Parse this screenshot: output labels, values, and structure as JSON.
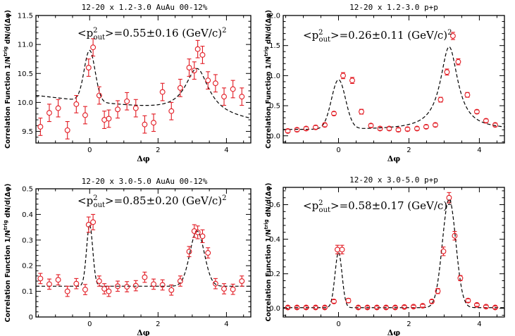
{
  "chart_data": [
    {
      "type": "scatter",
      "title": "12-20 x 1.2-3.0  AuAu 00-12%",
      "annotation": {
        "prefix": "<p",
        "sup": "2",
        "sub": "out",
        "value": ">=0.55±0.16 (GeV/c)",
        "sup2": "2"
      },
      "xlabel": "Δφ",
      "ylabel": "Correlation Function 1/N",
      "ylabel_sup": "trig",
      "ylabel_suffix": " dN/d(Δφ)",
      "xlim": [
        -1.5708,
        4.7124
      ],
      "ylim": [
        9.3,
        11.5
      ],
      "xticks": [
        0,
        2,
        4
      ],
      "yticks": [
        9.5,
        10.0,
        10.5,
        11.0,
        11.5
      ],
      "ytick_labels": [
        "9.5",
        "10.0",
        "10.5",
        "11.0",
        "11.5"
      ],
      "series": [
        {
          "name": "data",
          "x": [
            -1.44,
            -1.18,
            -0.92,
            -0.65,
            -0.39,
            -0.13,
            -0.03,
            0.1,
            0.28,
            0.43,
            0.56,
            0.82,
            1.09,
            1.35,
            1.61,
            1.87,
            2.13,
            2.39,
            2.65,
            2.91,
            3.06,
            3.16,
            3.3,
            3.46,
            3.68,
            3.93,
            4.19,
            4.45
          ],
          "y": [
            9.58,
            9.82,
            9.9,
            9.52,
            9.97,
            9.78,
            10.6,
            10.95,
            10.12,
            9.7,
            9.72,
            9.88,
            10.02,
            9.9,
            9.62,
            9.65,
            10.18,
            9.85,
            10.25,
            10.6,
            10.55,
            10.92,
            10.82,
            10.38,
            10.33,
            10.1,
            10.23,
            10.1
          ],
          "err": [
            0.15,
            0.15,
            0.15,
            0.15,
            0.15,
            0.15,
            0.15,
            0.15,
            0.15,
            0.15,
            0.15,
            0.15,
            0.15,
            0.15,
            0.15,
            0.15,
            0.15,
            0.15,
            0.15,
            0.15,
            0.15,
            0.15,
            0.15,
            0.15,
            0.15,
            0.15,
            0.15,
            0.15
          ]
        }
      ],
      "fit": {
        "base": 9.9,
        "drift": -0.07,
        "drift_center": 1.5,
        "near_amp": 0.88,
        "near_width": 0.16,
        "away_amp": 0.8,
        "away_width": 0.42,
        "away_shape": "lorentz"
      }
    },
    {
      "type": "scatter",
      "title": "12-20 x 1.2-3.0  p+p",
      "annotation": {
        "prefix": "<p",
        "sup": "2",
        "sub": "out",
        "value": ">=0.26±0.11 (GeV/c)",
        "sup2": "2"
      },
      "xlabel": "Δφ",
      "ylabel": "Correlation Function 1/N",
      "ylabel_sup": "trig",
      "ylabel_suffix": " dN/d(Δφ)",
      "xlim": [
        -1.5708,
        4.7124
      ],
      "ylim": [
        -0.12,
        2.0
      ],
      "xticks": [
        0,
        2,
        4
      ],
      "yticks": [
        0.0,
        0.5,
        1.0,
        1.5,
        2.0
      ],
      "ytick_labels": [
        "0.0",
        "0.5",
        "1.0",
        "1.5",
        "2.0"
      ],
      "series": [
        {
          "name": "data",
          "x": [
            -1.44,
            -1.18,
            -0.92,
            -0.65,
            -0.39,
            -0.13,
            0.13,
            0.39,
            0.65,
            0.92,
            1.18,
            1.44,
            1.7,
            1.96,
            2.23,
            2.49,
            2.75,
            2.9,
            3.08,
            3.25,
            3.4,
            3.66,
            3.93,
            4.19,
            4.45
          ],
          "y": [
            0.08,
            0.1,
            0.12,
            0.14,
            0.18,
            0.37,
            1.0,
            0.92,
            0.4,
            0.17,
            0.12,
            0.12,
            0.1,
            0.11,
            0.12,
            0.15,
            0.18,
            0.6,
            1.06,
            1.66,
            1.23,
            0.68,
            0.4,
            0.25,
            0.18
          ],
          "err": [
            0.03,
            0.03,
            0.03,
            0.03,
            0.03,
            0.03,
            0.05,
            0.05,
            0.04,
            0.03,
            0.03,
            0.03,
            0.03,
            0.03,
            0.03,
            0.03,
            0.03,
            0.04,
            0.05,
            0.06,
            0.05,
            0.04,
            0.03,
            0.03,
            0.03
          ]
        }
      ],
      "fit": {
        "base": 0.1,
        "drift": 0,
        "drift_center": 1.5,
        "near_amp": 0.82,
        "near_width": 0.2,
        "away_amp": 1.38,
        "away_width": 0.3,
        "away_shape": "lorentz"
      }
    },
    {
      "type": "scatter",
      "title": "12-20 x 3.0-5.0  AuAu 00-12%",
      "annotation": {
        "prefix": "<p",
        "sup": "2",
        "sub": "out",
        "value": ">=0.85±0.20 (GeV/c)",
        "sup2": "2"
      },
      "xlabel": "Δφ",
      "ylabel": "Correlation Function 1/N",
      "ylabel_sup": "trig",
      "ylabel_suffix": " dN/d(Δφ)",
      "xlim": [
        -1.5708,
        4.7124
      ],
      "ylim": [
        0.0,
        0.5
      ],
      "xticks": [
        0,
        2,
        4
      ],
      "yticks": [
        0.0,
        0.1,
        0.2,
        0.3,
        0.4,
        0.5
      ],
      "ytick_labels": [
        "0",
        "0.1",
        "0.2",
        "0.3",
        "0.4",
        "0.5"
      ],
      "series": [
        {
          "name": "data",
          "x": [
            -1.44,
            -1.18,
            -0.92,
            -0.65,
            -0.39,
            -0.13,
            -0.03,
            0.1,
            0.28,
            0.43,
            0.56,
            0.82,
            1.09,
            1.35,
            1.61,
            1.87,
            2.13,
            2.39,
            2.65,
            2.91,
            3.06,
            3.16,
            3.3,
            3.46,
            3.68,
            3.93,
            4.19,
            4.45
          ],
          "y": [
            0.15,
            0.128,
            0.145,
            0.1,
            0.13,
            0.107,
            0.36,
            0.37,
            0.14,
            0.11,
            0.1,
            0.12,
            0.118,
            0.122,
            0.155,
            0.128,
            0.125,
            0.105,
            0.14,
            0.255,
            0.335,
            0.33,
            0.315,
            0.25,
            0.13,
            0.11,
            0.108,
            0.14
          ],
          "err": [
            0.02,
            0.02,
            0.02,
            0.02,
            0.02,
            0.02,
            0.03,
            0.03,
            0.02,
            0.02,
            0.02,
            0.02,
            0.02,
            0.02,
            0.02,
            0.02,
            0.02,
            0.02,
            0.02,
            0.02,
            0.025,
            0.025,
            0.025,
            0.02,
            0.02,
            0.02,
            0.02,
            0.02
          ]
        }
      ],
      "fit": {
        "base": 0.12,
        "drift": 0,
        "drift_center": 1.5,
        "near_amp": 0.24,
        "near_width": 0.09,
        "away_amp": 0.215,
        "away_width": 0.21,
        "away_shape": "gauss"
      }
    },
    {
      "type": "scatter",
      "title": "12-20 x 3.0-5.0  p+p",
      "annotation": {
        "prefix": "<p",
        "sup": "2",
        "sub": "out",
        "value": ">=0.58±0.17 (GeV/c)",
        "sup2": "2"
      },
      "xlabel": "Δφ",
      "ylabel": "Correlation Function 1/N",
      "ylabel_sup": "trig",
      "ylabel_suffix": " dN/d(Δφ)",
      "xlim": [
        -1.5708,
        4.7124
      ],
      "ylim": [
        -0.05,
        0.7
      ],
      "xticks": [
        0,
        2,
        4
      ],
      "yticks": [
        0.0,
        0.2,
        0.4,
        0.6
      ],
      "ytick_labels": [
        "0.0",
        "0.2",
        "0.4",
        "0.6"
      ],
      "series": [
        {
          "name": "data",
          "x": [
            -1.44,
            -1.18,
            -0.92,
            -0.65,
            -0.39,
            -0.13,
            -0.03,
            0.1,
            0.28,
            0.56,
            0.82,
            1.09,
            1.35,
            1.61,
            1.87,
            2.13,
            2.39,
            2.65,
            2.82,
            2.98,
            3.14,
            3.3,
            3.46,
            3.68,
            3.93,
            4.19,
            4.45
          ],
          "y": [
            0.005,
            0.005,
            0.005,
            0.005,
            0.005,
            0.04,
            0.34,
            0.34,
            0.045,
            0.005,
            0.005,
            0.005,
            0.005,
            0.005,
            0.008,
            0.01,
            0.015,
            0.04,
            0.1,
            0.33,
            0.64,
            0.42,
            0.175,
            0.045,
            0.02,
            0.01,
            0.005
          ],
          "err": [
            0.008,
            0.008,
            0.008,
            0.008,
            0.008,
            0.01,
            0.025,
            0.025,
            0.012,
            0.008,
            0.008,
            0.008,
            0.008,
            0.008,
            0.008,
            0.008,
            0.008,
            0.01,
            0.015,
            0.025,
            0.03,
            0.025,
            0.015,
            0.01,
            0.008,
            0.008,
            0.008
          ]
        }
      ],
      "fit": {
        "base": 0.004,
        "drift": 0,
        "drift_center": 1.5,
        "near_amp": 0.32,
        "near_width": 0.1,
        "away_amp": 0.628,
        "away_width": 0.19,
        "away_shape": "gauss"
      }
    }
  ]
}
